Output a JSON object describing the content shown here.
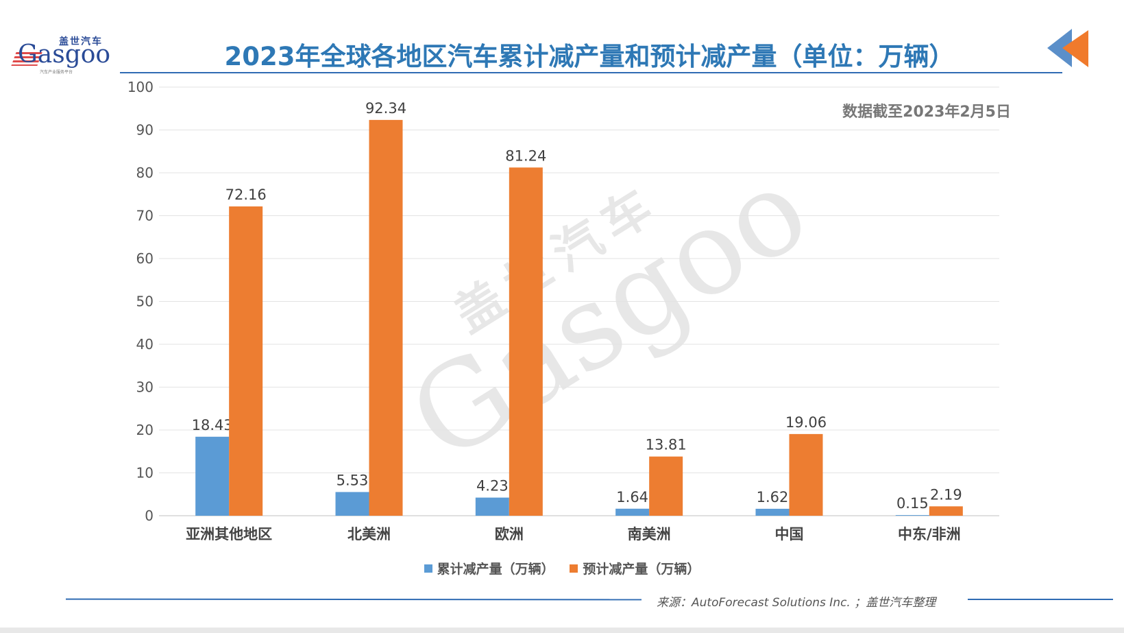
{
  "logo": {
    "cn": "盖世汽车",
    "en": "Gasgoo",
    "sub": "汽车产业服务平台"
  },
  "title": "2023年全球各地区汽车累计减产量和预计减产量（单位：万辆）",
  "note": "数据截至2023年2月5日",
  "source": "来源：AutoForecast Solutions Inc. ；盖世汽车整理",
  "watermark": {
    "cn": "盖世汽车",
    "en": "Gasgoo"
  },
  "colors": {
    "series1": "#5b9bd5",
    "series2": "#ed7d31",
    "title": "#2e78b5",
    "rule": "#2f6bb3"
  },
  "chart_data": {
    "type": "bar",
    "categories": [
      "亚洲其他地区",
      "北美洲",
      "欧洲",
      "南美洲",
      "中国",
      "中东/非洲"
    ],
    "series": [
      {
        "name": "累计减产量（万辆）",
        "values": [
          18.43,
          5.53,
          4.23,
          1.64,
          1.62,
          0.15
        ],
        "labels": [
          "18.43",
          "5.53",
          "4.23",
          "1.64",
          "1.62",
          "0.15"
        ]
      },
      {
        "name": "预计减产量（万辆）",
        "values": [
          72.16,
          92.34,
          81.24,
          13.81,
          19.06,
          2.19
        ],
        "labels": [
          "72.16",
          "92.34",
          "81.24",
          "13.81",
          "19.06",
          "2.19"
        ]
      }
    ],
    "ylim": [
      0,
      100
    ],
    "yticks": [
      "0",
      "10",
      "20",
      "30",
      "40",
      "50",
      "60",
      "70",
      "80",
      "90",
      "100"
    ],
    "grid": true,
    "legend": "bottom"
  }
}
